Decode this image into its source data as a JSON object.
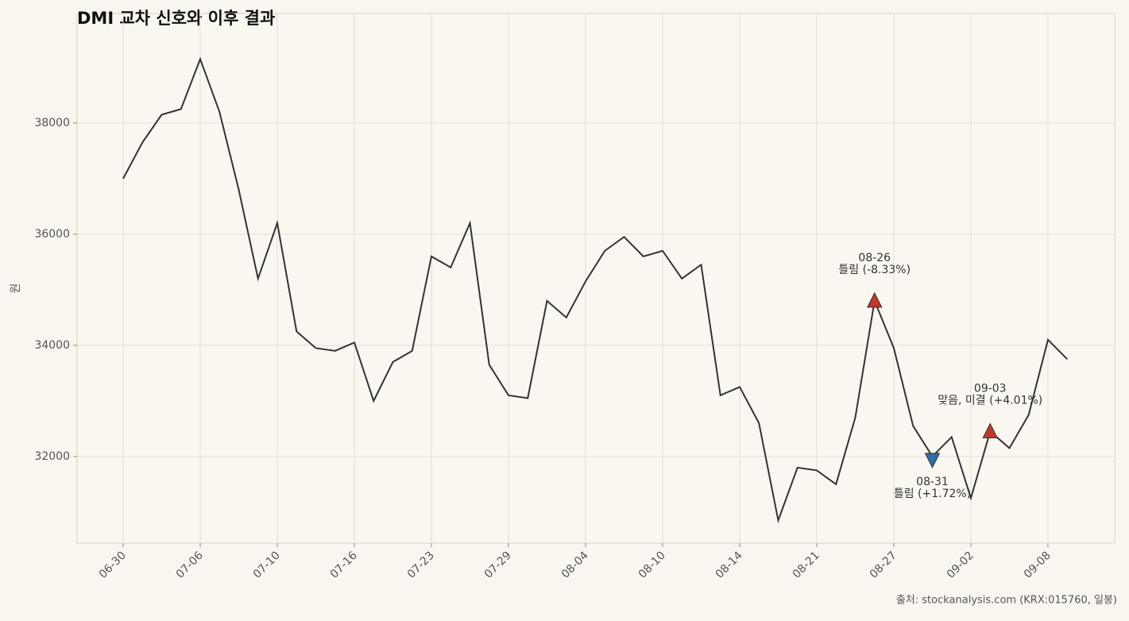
{
  "chart_data": {
    "type": "line",
    "title": "DMI 교차 신호와 이후 결과",
    "y_label": "원",
    "source": "출처: stockanalysis.com (KRX:015760, 일봉)",
    "categories": [
      "06-30",
      null,
      null,
      null,
      "07-06",
      null,
      null,
      null,
      "07-10",
      null,
      null,
      null,
      "07-16",
      null,
      null,
      null,
      "07-23",
      null,
      null,
      null,
      "07-29",
      null,
      null,
      null,
      "08-04",
      null,
      null,
      null,
      "08-10",
      null,
      null,
      null,
      "08-14",
      null,
      null,
      null,
      "08-21",
      null,
      null,
      null,
      "08-27",
      null,
      null,
      null,
      "09-02",
      null,
      null,
      null,
      "09-08",
      null
    ],
    "series": [
      {
        "color": "#333333",
        "values": [
          37000,
          37650,
          38150,
          38250,
          39150,
          38200,
          36800,
          35200,
          36200,
          34250,
          33950,
          33900,
          34050,
          33000,
          33700,
          33900,
          35600,
          35400,
          36200,
          33650,
          33100,
          33050,
          34800,
          34500,
          35150,
          35700,
          35950,
          35600,
          35700,
          35200,
          35450,
          33100,
          33250,
          32600,
          30850,
          31800,
          31750,
          31500,
          32700,
          34800,
          33950,
          32550,
          32000,
          32350,
          31250,
          32450,
          32150,
          32750,
          34100,
          33750
        ]
      }
    ],
    "markers": [
      {
        "shape": "up",
        "color": "#c0392b",
        "values": [
          null,
          null,
          null,
          null,
          null,
          null,
          null,
          null,
          null,
          null,
          null,
          null,
          null,
          null,
          null,
          null,
          null,
          null,
          null,
          null,
          null,
          null,
          null,
          null,
          null,
          null,
          null,
          null,
          null,
          null,
          null,
          null,
          null,
          null,
          null,
          null,
          null,
          null,
          null,
          34800,
          null,
          null,
          null,
          null,
          null,
          32450,
          null,
          null,
          null,
          null
        ]
      },
      {
        "shape": "down",
        "color": "#2e6da4",
        "values": [
          null,
          null,
          null,
          null,
          null,
          null,
          null,
          null,
          null,
          null,
          null,
          null,
          null,
          null,
          null,
          null,
          null,
          null,
          null,
          null,
          null,
          null,
          null,
          null,
          null,
          null,
          null,
          null,
          null,
          null,
          null,
          null,
          null,
          null,
          null,
          null,
          null,
          null,
          null,
          null,
          null,
          null,
          32000,
          null,
          null,
          null,
          null,
          null,
          null,
          null
        ]
      }
    ],
    "annotations": [
      {
        "date": "08-26",
        "text": "틀림 (-8.33%)"
      },
      {
        "date": "08-31",
        "text": "틀림 (+1.72%)"
      },
      {
        "date": "09-03",
        "text": "맞음, 미결 (+4.01%)"
      }
    ],
    "ylim": [
      30440,
      39970
    ],
    "yticks": [
      32000,
      34000,
      36000,
      38000
    ],
    "grid": true
  }
}
